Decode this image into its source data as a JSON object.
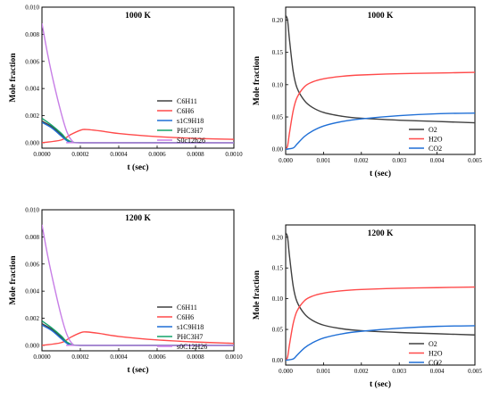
{
  "chart_data": [
    {
      "type": "line",
      "title": "1000 K",
      "xlabel": "t (sec)",
      "ylabel": "Mole fraction",
      "xlim": [
        0,
        0.001
      ],
      "ylim": [
        -0.0004,
        0.01
      ],
      "xticks": [
        "0.0000",
        "0.0002",
        "0.0004",
        "0.0006",
        "0.0008",
        "0.0010"
      ],
      "yticks": [
        "0.000",
        "0.002",
        "0.004",
        "0.006",
        "0.008",
        "0.010"
      ],
      "legend_position": "right",
      "series": [
        {
          "name": "C6H11",
          "color": "#404040",
          "x": [
            0,
            5e-05,
            0.0001,
            0.00013,
            0.00015,
            0.0002,
            0.0004,
            0.001
          ],
          "y": [
            0.0016,
            0.0012,
            0.0006,
            0.0002,
            5e-05,
            0,
            0,
            0
          ]
        },
        {
          "name": "C6H6",
          "color": "#ff4a4a",
          "x": [
            0,
            0.0001,
            0.00015,
            0.0002,
            0.00023,
            0.0003,
            0.0004,
            0.0006,
            0.0008,
            0.001
          ],
          "y": [
            0,
            0.0002,
            0.0006,
            0.00092,
            0.00098,
            0.00088,
            0.00068,
            0.00045,
            0.00032,
            0.00025
          ]
        },
        {
          "name": "s1C9H18",
          "color": "#1f6fd6",
          "x": [
            0,
            5e-05,
            0.0001,
            0.00013,
            0.00015,
            0.0002,
            0.0004,
            0.001
          ],
          "y": [
            0.0015,
            0.0011,
            0.0005,
            0.00015,
            3e-05,
            0,
            0,
            0
          ]
        },
        {
          "name": "PHC3H7",
          "color": "#13a36a",
          "x": [
            0,
            5e-05,
            0.0001,
            0.00013,
            0.00016,
            0.0002,
            0.0004,
            0.001
          ],
          "y": [
            0.0018,
            0.0013,
            0.0007,
            0.00025,
            5e-05,
            0,
            0,
            0
          ]
        },
        {
          "name": "S0c12h26",
          "color": "#c77ee6",
          "x": [
            0,
            3e-05,
            6e-05,
            0.0001,
            0.00013,
            0.00016,
            0.0002,
            0.001
          ],
          "y": [
            0.0088,
            0.0065,
            0.0045,
            0.0022,
            0.0008,
            0.0001,
            0,
            0
          ]
        }
      ]
    },
    {
      "type": "line",
      "title": "1000 K",
      "xlabel": "t (sec)",
      "ylabel": "Mole fraction",
      "xlim": [
        0,
        0.005
      ],
      "ylim": [
        -0.008,
        0.22
      ],
      "xticks": [
        "0.000",
        "0.001",
        "0.002",
        "0.003",
        "0.004",
        "0.005"
      ],
      "yticks": [
        "0.00",
        "0.05",
        "0.10",
        "0.15",
        "0.20"
      ],
      "legend_position": "bottom-right",
      "series": [
        {
          "name": "O2",
          "color": "#404040",
          "x": [
            0,
            5e-05,
            0.0001,
            0.0002,
            0.0003,
            0.0005,
            0.0007,
            0.001,
            0.0015,
            0.002,
            0.003,
            0.004,
            0.005
          ],
          "y": [
            0.207,
            0.2,
            0.17,
            0.12,
            0.095,
            0.075,
            0.065,
            0.057,
            0.051,
            0.048,
            0.045,
            0.043,
            0.041
          ]
        },
        {
          "name": "H2O",
          "color": "#ff4a4a",
          "x": [
            0,
            5e-05,
            0.0001,
            0.0002,
            0.0003,
            0.0005,
            0.0007,
            0.001,
            0.0015,
            0.002,
            0.003,
            0.004,
            0.005
          ],
          "y": [
            0,
            0.005,
            0.025,
            0.06,
            0.08,
            0.097,
            0.104,
            0.109,
            0.113,
            0.115,
            0.117,
            0.118,
            0.119
          ]
        },
        {
          "name": "CO2",
          "color": "#1f6fd6",
          "x": [
            0,
            0.0002,
            0.0003,
            0.0005,
            0.0007,
            0.001,
            0.0015,
            0.002,
            0.003,
            0.004,
            0.005
          ],
          "y": [
            0,
            0.002,
            0.008,
            0.02,
            0.028,
            0.036,
            0.043,
            0.047,
            0.052,
            0.055,
            0.056
          ]
        }
      ]
    },
    {
      "type": "line",
      "title": "1200 K",
      "xlabel": "t (sec)",
      "ylabel": "Mole fraction",
      "xlim": [
        0,
        0.001
      ],
      "ylim": [
        -0.0004,
        0.01
      ],
      "xticks": [
        "0.0000",
        "0.0002",
        "0.0004",
        "0.0006",
        "0.0008",
        "0.0010"
      ],
      "yticks": [
        "0.000",
        "0.002",
        "0.004",
        "0.006",
        "0.008",
        "0.010"
      ],
      "legend_position": "right",
      "series": [
        {
          "name": "C6H11",
          "color": "#404040",
          "x": [
            0,
            5e-05,
            0.0001,
            0.00013,
            0.00015,
            0.0002,
            0.0004,
            0.001
          ],
          "y": [
            0.0016,
            0.0012,
            0.0006,
            0.0002,
            5e-05,
            0,
            0,
            0
          ]
        },
        {
          "name": "C6H6",
          "color": "#ff4a4a",
          "x": [
            0,
            0.0001,
            0.00015,
            0.0002,
            0.00023,
            0.0003,
            0.0004,
            0.0006,
            0.0008,
            0.001
          ],
          "y": [
            0,
            0.0002,
            0.0006,
            0.00093,
            0.00099,
            0.00088,
            0.00066,
            0.0004,
            0.00025,
            0.00015
          ]
        },
        {
          "name": "s1C9H18",
          "color": "#1f6fd6",
          "x": [
            0,
            5e-05,
            0.0001,
            0.00013,
            0.00015,
            0.0002,
            0.0004,
            0.001
          ],
          "y": [
            0.0015,
            0.0011,
            0.0005,
            0.00015,
            3e-05,
            0,
            0,
            0
          ]
        },
        {
          "name": "PHC3H7",
          "color": "#13a36a",
          "x": [
            0,
            5e-05,
            0.0001,
            0.00013,
            0.00016,
            0.0002,
            0.0004,
            0.001
          ],
          "y": [
            0.0018,
            0.0013,
            0.0007,
            0.00025,
            5e-05,
            0,
            0,
            0
          ]
        },
        {
          "name": "s0C12H26",
          "color": "#c77ee6",
          "x": [
            0,
            3e-05,
            6e-05,
            0.0001,
            0.00013,
            0.00016,
            0.0002,
            0.001
          ],
          "y": [
            0.0089,
            0.0066,
            0.0046,
            0.0022,
            0.0008,
            0.0001,
            0,
            0
          ]
        }
      ]
    },
    {
      "type": "line",
      "title": "1200 K",
      "xlabel": "t (sec)",
      "ylabel": "Mole fraction",
      "xlim": [
        0,
        0.005
      ],
      "ylim": [
        -0.008,
        0.22
      ],
      "xticks": [
        "0.000",
        "0.001",
        "0.002",
        "0.003",
        "0.004",
        "0.005"
      ],
      "yticks": [
        "0.00",
        "0.05",
        "0.10",
        "0.15",
        "0.20"
      ],
      "legend_position": "bottom-right",
      "series": [
        {
          "name": "O2",
          "color": "#404040",
          "x": [
            0,
            5e-05,
            0.0001,
            0.0002,
            0.0003,
            0.0005,
            0.0007,
            0.001,
            0.0015,
            0.002,
            0.003,
            0.004,
            0.005
          ],
          "y": [
            0.207,
            0.2,
            0.17,
            0.12,
            0.095,
            0.075,
            0.065,
            0.057,
            0.051,
            0.048,
            0.045,
            0.043,
            0.041
          ]
        },
        {
          "name": "H2O",
          "color": "#ff4a4a",
          "x": [
            0,
            5e-05,
            0.0001,
            0.0002,
            0.0003,
            0.0005,
            0.0007,
            0.001,
            0.0015,
            0.002,
            0.003,
            0.004,
            0.005
          ],
          "y": [
            0,
            0.005,
            0.025,
            0.06,
            0.08,
            0.097,
            0.104,
            0.109,
            0.113,
            0.115,
            0.117,
            0.118,
            0.119
          ]
        },
        {
          "name": "CO2",
          "color": "#1f6fd6",
          "x": [
            0,
            0.0002,
            0.0003,
            0.0005,
            0.0007,
            0.001,
            0.0015,
            0.002,
            0.003,
            0.004,
            0.005
          ],
          "y": [
            0,
            0.002,
            0.008,
            0.02,
            0.028,
            0.036,
            0.043,
            0.047,
            0.052,
            0.055,
            0.056
          ]
        }
      ]
    }
  ]
}
